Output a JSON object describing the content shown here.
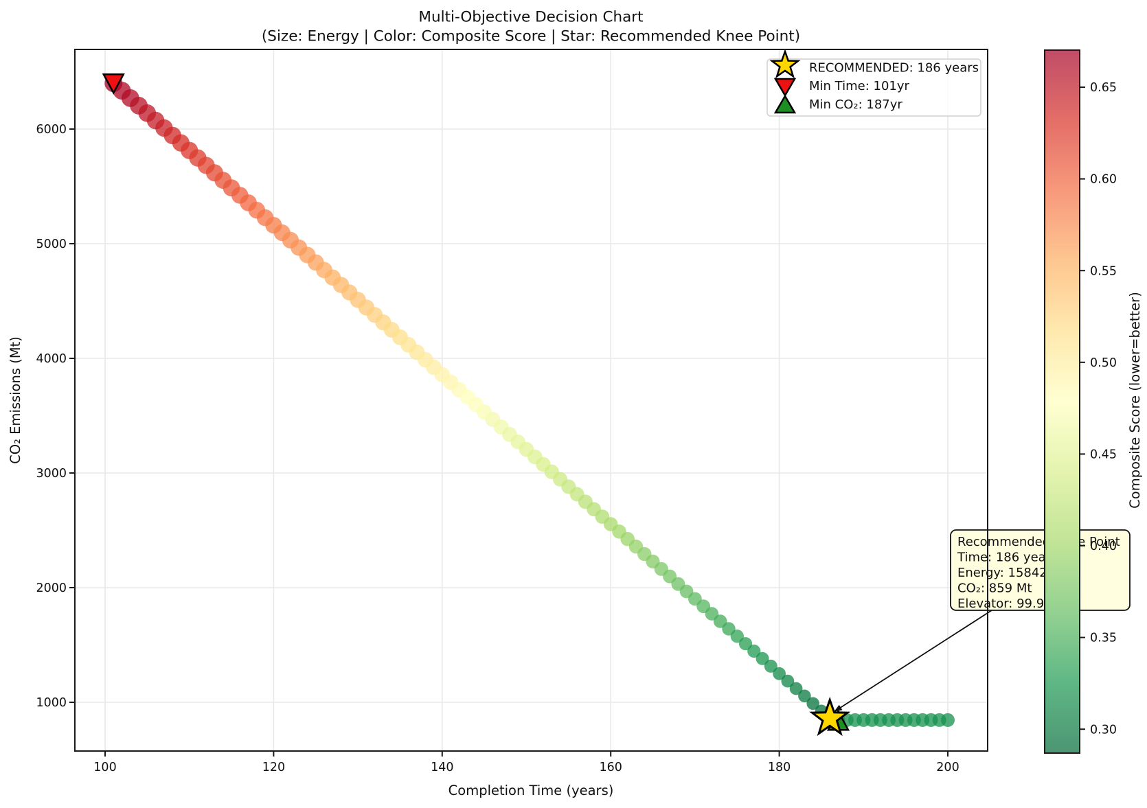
{
  "title": "Multi-Objective Decision Chart",
  "subtitle": "(Size: Energy | Color: Composite Score | Star: Recommended Knee Point)",
  "axes": {
    "xlabel": "Completion Time (years)",
    "ylabel": "CO₂ Emissions (Mt)",
    "x_ticks": [
      100,
      120,
      140,
      160,
      180,
      200
    ],
    "y_ticks": [
      1000,
      2000,
      3000,
      4000,
      5000,
      6000
    ],
    "xlim": [
      96.4,
      204.7
    ],
    "ylim": [
      580,
      6760
    ],
    "grid": true
  },
  "legend": {
    "items": [
      {
        "marker": "star",
        "label": "RECOMMENDED: 186 years"
      },
      {
        "marker": "triangle-down",
        "label": "Min Time: 101yr"
      },
      {
        "marker": "triangle-up",
        "label": "Min CO₂: 187yr"
      }
    ]
  },
  "colorbar": {
    "label": "Composite Score (lower=better)",
    "vmin": 0.287,
    "vmax": 0.67,
    "ticks": [
      {
        "v": 0.3,
        "label": "0.30"
      },
      {
        "v": 0.35,
        "label": "0.35"
      },
      {
        "v": 0.4,
        "label": "0.40"
      },
      {
        "v": 0.45,
        "label": "0.45"
      },
      {
        "v": 0.5,
        "label": "0.50"
      },
      {
        "v": 0.55,
        "label": "0.55"
      },
      {
        "v": 0.6,
        "label": "0.60"
      },
      {
        "v": 0.65,
        "label": "0.65"
      }
    ],
    "cmap_low_to_high": [
      "#006837",
      "#1a9850",
      "#66bd63",
      "#a6d96a",
      "#d9ef8b",
      "#ffffbf",
      "#fee08b",
      "#fdae61",
      "#f46d43",
      "#d73027",
      "#a50026"
    ],
    "alpha": 0.7
  },
  "annotation": {
    "lines": [
      "Recommended Knee Point",
      "Time: 186 years",
      "Energy: 15842 TWh",
      "CO₂: 859 Mt",
      "Elevator: 99.9%"
    ]
  },
  "markers": {
    "recommended": {
      "x": 186,
      "co2": 859,
      "shape": "star",
      "color": "#FFD700"
    },
    "min_time": {
      "x": 101,
      "co2": 6400,
      "shape": "triangle-down",
      "color": "#ee1111"
    },
    "min_co2": {
      "x": 187,
      "co2": 843,
      "shape": "triangle-up",
      "color": "#1e8f22"
    }
  },
  "colors": {
    "grid": "#e8e8e8",
    "frame": "#1a1a1a",
    "annotation_bg": "#ffffdf",
    "legend_border": "#d0d0d0",
    "scatter_alpha": 0.75
  },
  "chart_data": {
    "type": "scatter",
    "title": "Multi-Objective Decision Chart",
    "xlabel": "Completion Time (years)",
    "ylabel": "CO₂ Emissions (Mt)",
    "xlim": [
      96.4,
      204.7
    ],
    "ylim": [
      580,
      6760
    ],
    "size_encodes": "Energy",
    "color_encodes": "Composite Score",
    "x": [
      101,
      102,
      103,
      104,
      105,
      106,
      107,
      108,
      109,
      110,
      111,
      112,
      113,
      114,
      115,
      116,
      117,
      118,
      119,
      120,
      121,
      122,
      123,
      124,
      125,
      126,
      127,
      128,
      129,
      130,
      131,
      132,
      133,
      134,
      135,
      136,
      137,
      138,
      139,
      140,
      141,
      142,
      143,
      144,
      145,
      146,
      147,
      148,
      149,
      150,
      151,
      152,
      153,
      154,
      155,
      156,
      157,
      158,
      159,
      160,
      161,
      162,
      163,
      164,
      165,
      166,
      167,
      168,
      169,
      170,
      171,
      172,
      173,
      174,
      175,
      176,
      177,
      178,
      179,
      180,
      181,
      182,
      183,
      184,
      185,
      186,
      187,
      188,
      189,
      190,
      191,
      192,
      193,
      194,
      195,
      196,
      197,
      198,
      199,
      200
    ],
    "co2": [
      6400,
      6335,
      6270,
      6204,
      6139,
      6074,
      6009,
      5944,
      5879,
      5813,
      5748,
      5683,
      5618,
      5553,
      5487,
      5422,
      5357,
      5292,
      5227,
      5161,
      5096,
      5031,
      4966,
      4901,
      4836,
      4770,
      4705,
      4640,
      4575,
      4510,
      4444,
      4379,
      4314,
      4249,
      4184,
      4118,
      4053,
      3988,
      3923,
      3858,
      3792,
      3727,
      3662,
      3597,
      3532,
      3467,
      3401,
      3336,
      3271,
      3206,
      3141,
      3075,
      3010,
      2945,
      2880,
      2815,
      2749,
      2684,
      2619,
      2554,
      2489,
      2424,
      2358,
      2293,
      2228,
      2163,
      2098,
      2032,
      1967,
      1902,
      1837,
      1772,
      1706,
      1641,
      1576,
      1511,
      1446,
      1381,
      1315,
      1250,
      1185,
      1120,
      1055,
      989,
      924,
      859,
      843,
      845,
      845,
      845,
      845,
      845,
      845,
      845,
      845,
      845,
      845,
      845,
      845,
      845
    ],
    "score": [
      0.67,
      0.665,
      0.661,
      0.656,
      0.652,
      0.647,
      0.643,
      0.638,
      0.634,
      0.629,
      0.625,
      0.62,
      0.616,
      0.611,
      0.607,
      0.602,
      0.598,
      0.593,
      0.589,
      0.584,
      0.58,
      0.575,
      0.571,
      0.566,
      0.562,
      0.557,
      0.553,
      0.548,
      0.544,
      0.539,
      0.535,
      0.53,
      0.526,
      0.521,
      0.517,
      0.512,
      0.508,
      0.503,
      0.499,
      0.494,
      0.49,
      0.485,
      0.481,
      0.476,
      0.472,
      0.467,
      0.463,
      0.458,
      0.454,
      0.449,
      0.445,
      0.44,
      0.436,
      0.431,
      0.427,
      0.422,
      0.418,
      0.413,
      0.409,
      0.404,
      0.4,
      0.395,
      0.391,
      0.386,
      0.382,
      0.377,
      0.373,
      0.368,
      0.364,
      0.359,
      0.355,
      0.35,
      0.346,
      0.341,
      0.337,
      0.332,
      0.328,
      0.323,
      0.319,
      0.314,
      0.31,
      0.305,
      0.301,
      0.296,
      0.292,
      0.287,
      0.315,
      0.318,
      0.32,
      0.32,
      0.32,
      0.32,
      0.32,
      0.32,
      0.32,
      0.32,
      0.32,
      0.32,
      0.32,
      0.32
    ],
    "r": [
      13.0,
      13.0,
      12.9,
      12.9,
      12.8,
      12.8,
      12.7,
      12.7,
      12.6,
      12.6,
      12.6,
      12.5,
      12.5,
      12.4,
      12.4,
      12.3,
      12.3,
      12.2,
      12.2,
      12.1,
      12.1,
      12.1,
      12.0,
      12.0,
      11.9,
      11.9,
      11.8,
      11.8,
      11.7,
      11.7,
      11.7,
      11.6,
      11.6,
      11.5,
      11.5,
      11.4,
      11.4,
      11.3,
      11.3,
      11.2,
      11.2,
      11.2,
      11.1,
      11.1,
      11.0,
      11.0,
      10.9,
      10.9,
      10.8,
      10.8,
      10.8,
      10.7,
      10.7,
      10.6,
      10.6,
      10.5,
      10.5,
      10.4,
      10.4,
      10.3,
      10.3,
      10.3,
      10.2,
      10.2,
      10.1,
      10.1,
      10.0,
      10.0,
      9.9,
      9.9,
      9.9,
      9.8,
      9.8,
      9.7,
      9.7,
      9.6,
      9.6,
      9.5,
      9.5,
      9.4,
      9.4,
      9.4,
      9.3,
      9.3,
      9.2,
      9.2,
      10,
      10,
      10,
      10,
      10,
      10,
      10,
      10,
      10,
      10,
      10,
      10,
      10,
      10
    ]
  }
}
